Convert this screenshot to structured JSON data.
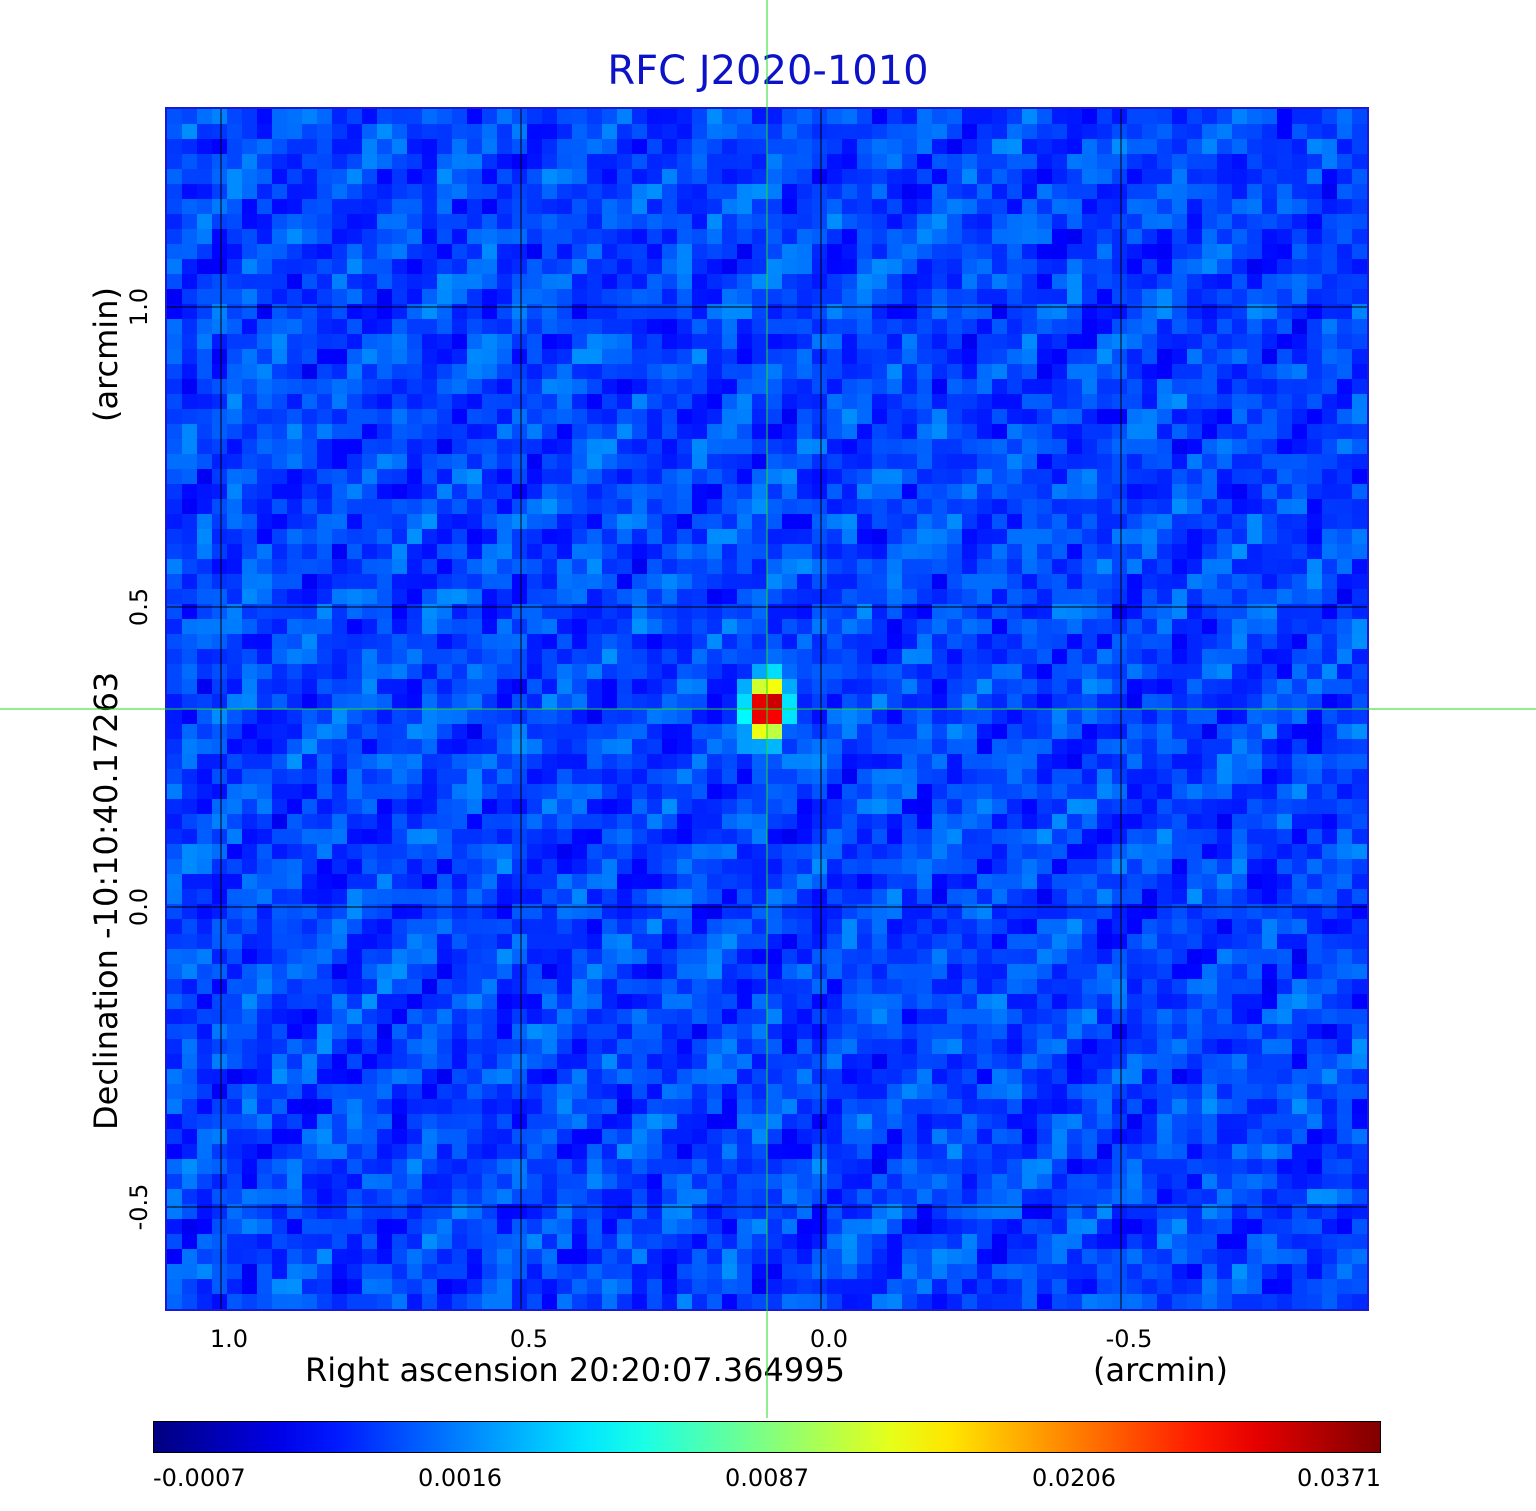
{
  "title": "RFC J2020-1010",
  "chart_data": {
    "type": "heatmap",
    "title": "RFC J2020-1010",
    "xlabel": "Right ascension  20:20:07.364995",
    "xunit": "(arcmin)",
    "ylabel": "Declination  -10:10:40.17263",
    "yunit": "(arcmin)",
    "xlim": [
      1.09,
      -0.91
    ],
    "ylim": [
      -0.67,
      1.33
    ],
    "xticks": [
      "1.0",
      "0.5",
      "0.0",
      "-0.5"
    ],
    "xtick_values": [
      1.0,
      0.5,
      0.0,
      -0.5
    ],
    "yticks": [
      "1.0",
      "0.5",
      "0.0",
      "-0.5"
    ],
    "ytick_values": [
      1.0,
      0.5,
      0.0,
      -0.5
    ],
    "grid": true,
    "crosshair": {
      "ra_arcmin": 0.09,
      "dec_arcmin": 0.33
    },
    "peak_value": 0.0371,
    "background_value": 0.0,
    "colormap": "jet",
    "colorbar": {
      "ticks": [
        "-0.0007",
        "0.0016",
        "0.0087",
        "0.0206",
        "0.0371"
      ],
      "tick_values": [
        -0.0007,
        0.0016,
        0.0087,
        0.0206,
        0.0371
      ]
    }
  },
  "colors": {
    "title": "#0b12c8",
    "crosshair": "#22dd22",
    "grid": "#000000",
    "frame": "#1a1ad6"
  }
}
